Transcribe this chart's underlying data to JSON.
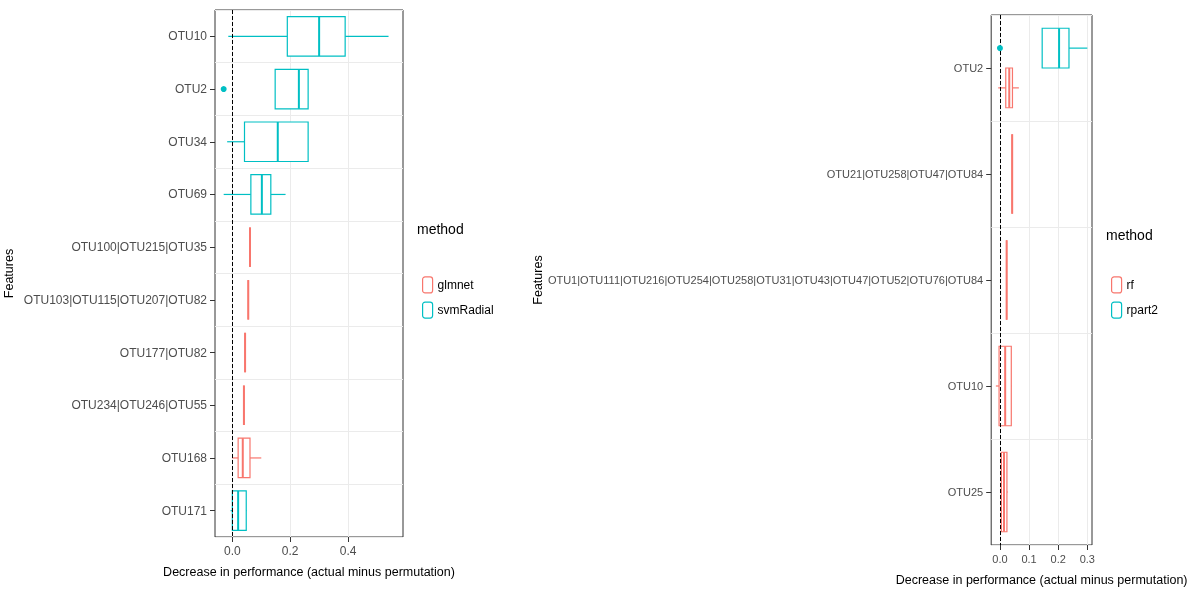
{
  "chart_data": [
    {
      "type": "box",
      "orientation": "horizontal",
      "xlabel": "Decrease in performance (actual minus permutation)",
      "ylabel": "Features",
      "legend_title": "method",
      "legend": "right",
      "grid": true,
      "categories": [
        "OTU10",
        "OTU2",
        "OTU34",
        "OTU69",
        "OTU100|OTU215|OTU35",
        "OTU103|OTU115|OTU207|OTU82",
        "OTU177|OTU82",
        "OTU234|OTU246|OTU55",
        "OTU168",
        "OTU171"
      ],
      "xlim": [
        -0.06,
        0.59
      ],
      "xticks": [
        {
          "value": 0,
          "label": "0.0"
        },
        0.2,
        0.4
      ],
      "ref_lines": [
        {
          "axis": "x",
          "value": 0,
          "line_style": "dashed",
          "color": "#000000"
        }
      ],
      "series": [
        {
          "name": "glmnet",
          "color": "#f8766d",
          "boxes": [
            null,
            null,
            null,
            null,
            {
              "low": 0.061,
              "q1": 0.061,
              "median": 0.061,
              "q3": 0.061,
              "high": 0.061
            },
            {
              "low": 0.055,
              "q1": 0.055,
              "median": 0.055,
              "q3": 0.055,
              "high": 0.055
            },
            {
              "low": 0.044,
              "q1": 0.044,
              "median": 0.044,
              "q3": 0.044,
              "high": 0.044
            },
            {
              "low": 0.04,
              "q1": 0.04,
              "median": 0.04,
              "q3": 0.04,
              "high": 0.04
            },
            {
              "low": 0.0,
              "q1": 0.02,
              "median": 0.036,
              "q3": 0.061,
              "high": 0.1
            },
            null
          ]
        },
        {
          "name": "svmRadial",
          "color": "#00bfc4",
          "boxes": [
            {
              "low": -0.014,
              "q1": 0.19,
              "median": 0.3,
              "q3": 0.39,
              "high": 0.54
            },
            {
              "low": 0.148,
              "q1": 0.148,
              "median": 0.23,
              "q3": 0.262,
              "high": 0.262,
              "outliers": [
                -0.03
              ]
            },
            {
              "low": -0.018,
              "q1": 0.042,
              "median": 0.157,
              "q3": 0.262,
              "high": 0.262
            },
            {
              "low": -0.03,
              "q1": 0.064,
              "median": 0.102,
              "q3": 0.133,
              "high": 0.184
            },
            null,
            null,
            null,
            null,
            null,
            {
              "low": -0.006,
              "q1": 0.0,
              "median": 0.02,
              "q3": 0.048,
              "high": 0.05
            }
          ]
        }
      ]
    },
    {
      "type": "box",
      "orientation": "horizontal",
      "xlabel": "Decrease in performance (actual minus permutation)",
      "ylabel": "Features",
      "legend_title": "method",
      "legend": "right",
      "grid": true,
      "categories": [
        "OTU2",
        "OTU21|OTU258|OTU47|OTU84",
        "OTU1|OTU111|OTU216|OTU254|OTU258|OTU31|OTU43|OTU47|OTU52|OTU76|OTU84",
        "OTU10",
        "OTU25"
      ],
      "xlim": [
        -0.03,
        0.316
      ],
      "xticks": [
        {
          "value": 0,
          "label": "0.0"
        },
        0.1,
        0.2,
        0.3
      ],
      "ref_lines": [
        {
          "axis": "x",
          "value": 0,
          "line_style": "dashed",
          "color": "#000000"
        }
      ],
      "series": [
        {
          "name": "rf",
          "color": "#f8766d",
          "boxes": [
            {
              "low": -0.006,
              "q1": 0.02,
              "median": 0.032,
              "q3": 0.043,
              "high": 0.065
            },
            {
              "low": 0.042,
              "q1": 0.042,
              "median": 0.042,
              "q3": 0.042,
              "high": 0.042
            },
            {
              "low": 0.023,
              "q1": 0.023,
              "median": 0.023,
              "q3": 0.023,
              "high": 0.023
            },
            {
              "low": -0.014,
              "q1": -0.003,
              "median": 0.018,
              "q3": 0.039,
              "high": 0.041
            },
            {
              "low": 0.004,
              "q1": 0.005,
              "median": 0.014,
              "q3": 0.024,
              "high": 0.027
            }
          ]
        },
        {
          "name": "rpart2",
          "color": "#00bfc4",
          "boxes": [
            {
              "low": 0.145,
              "q1": 0.145,
              "median": 0.203,
              "q3": 0.237,
              "high": 0.3,
              "outliers": [
                0.0
              ]
            },
            null,
            null,
            null,
            null
          ]
        }
      ]
    }
  ]
}
